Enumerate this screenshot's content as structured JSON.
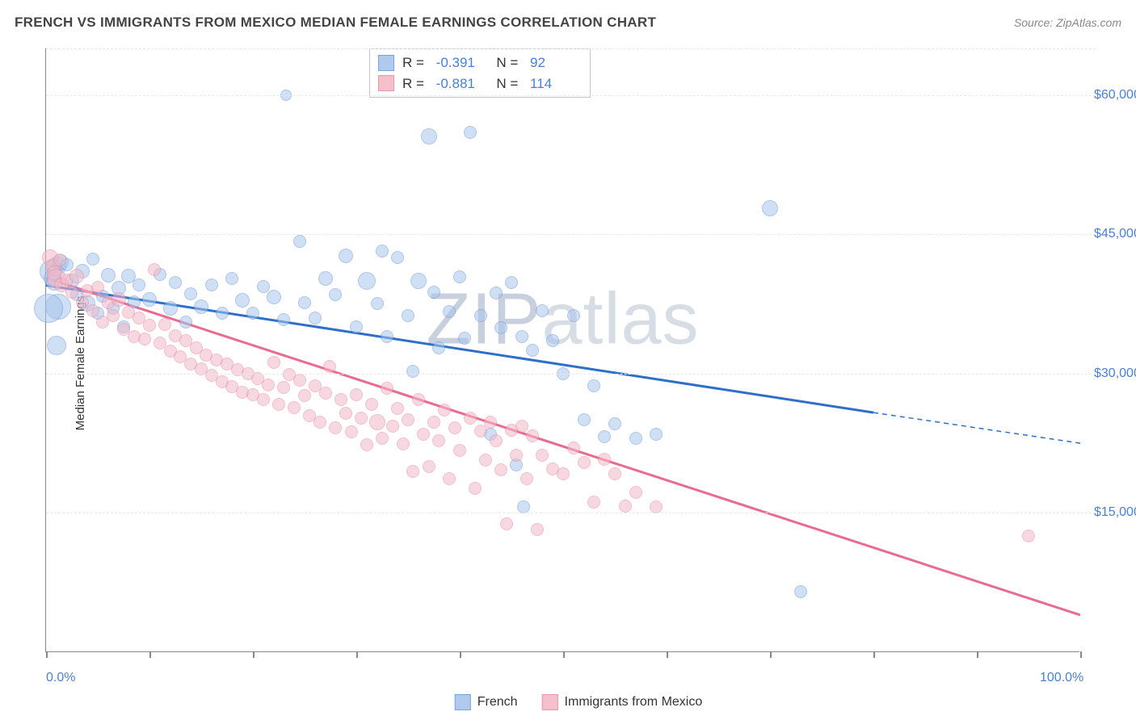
{
  "header": {
    "title": "FRENCH VS IMMIGRANTS FROM MEXICO MEDIAN FEMALE EARNINGS CORRELATION CHART",
    "source": "Source: ZipAtlas.com"
  },
  "chart": {
    "type": "scatter",
    "watermark": "ZIPatlas",
    "yaxis_label": "Median Female Earnings",
    "xlim": [
      0,
      100
    ],
    "ylim": [
      0,
      65000
    ],
    "x_ticks": [
      0,
      10,
      20,
      30,
      40,
      50,
      60,
      70,
      80,
      90,
      100
    ],
    "x_tick_labels": {
      "0": "0.0%",
      "100": "100.0%"
    },
    "y_ticks": [
      15000,
      30000,
      45000,
      60000
    ],
    "y_tick_labels": [
      "$15,000",
      "$30,000",
      "$45,000",
      "$60,000"
    ],
    "grid_color": "#e8e8e8",
    "axis_color": "#888888",
    "background_color": "#ffffff",
    "tick_label_color": "#4a7fd6",
    "label_fontsize": 15,
    "tick_fontsize": 16,
    "series": [
      {
        "name": "French",
        "fill": "#a8c5ec",
        "stroke": "#6c99d8",
        "fill_opacity": 0.55,
        "trend_color": "#2e6fc9",
        "R": "-0.391",
        "N": "92",
        "trend": {
          "x1": 0,
          "y1": 39500,
          "x2": 80,
          "y2": 25800,
          "x_dash_start": 80,
          "x2d": 100,
          "y2d": 22500
        },
        "points": [
          {
            "x": 0.5,
            "y": 41000,
            "r": 14
          },
          {
            "x": 0.6,
            "y": 40200,
            "r": 11
          },
          {
            "x": 0.8,
            "y": 39800,
            "r": 10
          },
          {
            "x": 1.0,
            "y": 41500,
            "r": 12
          },
          {
            "x": 1.2,
            "y": 37200,
            "r": 16
          },
          {
            "x": 1.4,
            "y": 42000,
            "r": 10
          },
          {
            "x": 1.0,
            "y": 33000,
            "r": 12
          },
          {
            "x": 0.2,
            "y": 37000,
            "r": 18
          },
          {
            "x": 2.0,
            "y": 41700,
            "r": 8
          },
          {
            "x": 2.5,
            "y": 40000,
            "r": 9
          },
          {
            "x": 3.0,
            "y": 38500,
            "r": 8
          },
          {
            "x": 3.5,
            "y": 41000,
            "r": 9
          },
          {
            "x": 4.0,
            "y": 37500,
            "r": 10
          },
          {
            "x": 4.5,
            "y": 42300,
            "r": 8
          },
          {
            "x": 5.0,
            "y": 36500,
            "r": 8
          },
          {
            "x": 5.5,
            "y": 38300,
            "r": 8
          },
          {
            "x": 6.0,
            "y": 40600,
            "r": 9
          },
          {
            "x": 6.5,
            "y": 37000,
            "r": 8
          },
          {
            "x": 7.0,
            "y": 39200,
            "r": 9
          },
          {
            "x": 7.5,
            "y": 35000,
            "r": 8
          },
          {
            "x": 8.0,
            "y": 40500,
            "r": 9
          },
          {
            "x": 8.5,
            "y": 37700,
            "r": 8
          },
          {
            "x": 9.0,
            "y": 39500,
            "r": 8
          },
          {
            "x": 10.0,
            "y": 38000,
            "r": 9
          },
          {
            "x": 11.0,
            "y": 40700,
            "r": 8
          },
          {
            "x": 12.0,
            "y": 37000,
            "r": 9
          },
          {
            "x": 12.5,
            "y": 39800,
            "r": 8
          },
          {
            "x": 13.5,
            "y": 35500,
            "r": 8
          },
          {
            "x": 14.0,
            "y": 38600,
            "r": 8
          },
          {
            "x": 15.0,
            "y": 37200,
            "r": 9
          },
          {
            "x": 16.0,
            "y": 39500,
            "r": 8
          },
          {
            "x": 17.0,
            "y": 36500,
            "r": 8
          },
          {
            "x": 18.0,
            "y": 40200,
            "r": 8
          },
          {
            "x": 19.0,
            "y": 37900,
            "r": 9
          },
          {
            "x": 20.0,
            "y": 36500,
            "r": 8
          },
          {
            "x": 21.0,
            "y": 39400,
            "r": 8
          },
          {
            "x": 22.0,
            "y": 38200,
            "r": 9
          },
          {
            "x": 23.0,
            "y": 35800,
            "r": 8
          },
          {
            "x": 23.2,
            "y": 60000,
            "r": 7
          },
          {
            "x": 24.5,
            "y": 44200,
            "r": 8
          },
          {
            "x": 25.0,
            "y": 37600,
            "r": 8
          },
          {
            "x": 26.0,
            "y": 36000,
            "r": 8
          },
          {
            "x": 27.0,
            "y": 40200,
            "r": 9
          },
          {
            "x": 28.0,
            "y": 38500,
            "r": 8
          },
          {
            "x": 29.0,
            "y": 42700,
            "r": 9
          },
          {
            "x": 30.0,
            "y": 35000,
            "r": 8
          },
          {
            "x": 31.0,
            "y": 40000,
            "r": 11
          },
          {
            "x": 32.0,
            "y": 37500,
            "r": 8
          },
          {
            "x": 32.5,
            "y": 43200,
            "r": 8
          },
          {
            "x": 33.0,
            "y": 34000,
            "r": 8
          },
          {
            "x": 34.0,
            "y": 42500,
            "r": 8
          },
          {
            "x": 35.0,
            "y": 36200,
            "r": 8
          },
          {
            "x": 35.5,
            "y": 30200,
            "r": 8
          },
          {
            "x": 36.0,
            "y": 40000,
            "r": 10
          },
          {
            "x": 37.0,
            "y": 55500,
            "r": 10
          },
          {
            "x": 37.5,
            "y": 38800,
            "r": 8
          },
          {
            "x": 38.0,
            "y": 32800,
            "r": 8
          },
          {
            "x": 39.0,
            "y": 36700,
            "r": 8
          },
          {
            "x": 40.0,
            "y": 40400,
            "r": 8
          },
          {
            "x": 40.5,
            "y": 33800,
            "r": 8
          },
          {
            "x": 41.0,
            "y": 56000,
            "r": 8
          },
          {
            "x": 42.0,
            "y": 36200,
            "r": 8
          },
          {
            "x": 43.0,
            "y": 23500,
            "r": 8
          },
          {
            "x": 43.5,
            "y": 38700,
            "r": 8
          },
          {
            "x": 44.0,
            "y": 34900,
            "r": 8
          },
          {
            "x": 45.0,
            "y": 39800,
            "r": 8
          },
          {
            "x": 45.5,
            "y": 20200,
            "r": 8
          },
          {
            "x": 46.0,
            "y": 34000,
            "r": 8
          },
          {
            "x": 46.2,
            "y": 15600,
            "r": 8
          },
          {
            "x": 47.0,
            "y": 32500,
            "r": 8
          },
          {
            "x": 48.0,
            "y": 36800,
            "r": 8
          },
          {
            "x": 49.0,
            "y": 33500,
            "r": 8
          },
          {
            "x": 50.0,
            "y": 30000,
            "r": 8
          },
          {
            "x": 51.0,
            "y": 36200,
            "r": 8
          },
          {
            "x": 52.0,
            "y": 25000,
            "r": 8
          },
          {
            "x": 53.0,
            "y": 28700,
            "r": 8
          },
          {
            "x": 54.0,
            "y": 23200,
            "r": 8
          },
          {
            "x": 55.0,
            "y": 24600,
            "r": 8
          },
          {
            "x": 57.0,
            "y": 23000,
            "r": 8
          },
          {
            "x": 59.0,
            "y": 23500,
            "r": 8
          },
          {
            "x": 70.0,
            "y": 47800,
            "r": 10
          },
          {
            "x": 73.0,
            "y": 6500,
            "r": 8
          }
        ]
      },
      {
        "name": "Immigrants from Mexico",
        "fill": "#f4b9c7",
        "stroke": "#e88aa3",
        "fill_opacity": 0.55,
        "trend_color": "#e76c8f",
        "R": "-0.881",
        "N": "114",
        "trend": {
          "x1": 0,
          "y1": 40300,
          "x2": 100,
          "y2": 4000
        },
        "points": [
          {
            "x": 0.4,
            "y": 42500,
            "r": 10
          },
          {
            "x": 0.6,
            "y": 41500,
            "r": 9
          },
          {
            "x": 0.8,
            "y": 40800,
            "r": 9
          },
          {
            "x": 1.0,
            "y": 40200,
            "r": 12
          },
          {
            "x": 1.3,
            "y": 42200,
            "r": 8
          },
          {
            "x": 1.5,
            "y": 39500,
            "r": 9
          },
          {
            "x": 2.0,
            "y": 40100,
            "r": 8
          },
          {
            "x": 2.5,
            "y": 38800,
            "r": 8
          },
          {
            "x": 3.0,
            "y": 40500,
            "r": 9
          },
          {
            "x": 3.5,
            "y": 37600,
            "r": 8
          },
          {
            "x": 4.0,
            "y": 38900,
            "r": 8
          },
          {
            "x": 4.5,
            "y": 36800,
            "r": 8
          },
          {
            "x": 5.0,
            "y": 39300,
            "r": 8
          },
          {
            "x": 5.5,
            "y": 35500,
            "r": 8
          },
          {
            "x": 6.0,
            "y": 37600,
            "r": 8
          },
          {
            "x": 6.5,
            "y": 36200,
            "r": 8
          },
          {
            "x": 7.0,
            "y": 38000,
            "r": 9
          },
          {
            "x": 7.5,
            "y": 34800,
            "r": 8
          },
          {
            "x": 8.0,
            "y": 36600,
            "r": 8
          },
          {
            "x": 8.5,
            "y": 34000,
            "r": 8
          },
          {
            "x": 9.0,
            "y": 36000,
            "r": 8
          },
          {
            "x": 9.5,
            "y": 33700,
            "r": 8
          },
          {
            "x": 10.0,
            "y": 35200,
            "r": 8
          },
          {
            "x": 10.5,
            "y": 41200,
            "r": 8
          },
          {
            "x": 11.0,
            "y": 33300,
            "r": 8
          },
          {
            "x": 11.5,
            "y": 35300,
            "r": 8
          },
          {
            "x": 12.0,
            "y": 32400,
            "r": 8
          },
          {
            "x": 12.5,
            "y": 34100,
            "r": 8
          },
          {
            "x": 13.0,
            "y": 31800,
            "r": 8
          },
          {
            "x": 13.5,
            "y": 33500,
            "r": 8
          },
          {
            "x": 14.0,
            "y": 31000,
            "r": 8
          },
          {
            "x": 14.5,
            "y": 32800,
            "r": 8
          },
          {
            "x": 15.0,
            "y": 30500,
            "r": 8
          },
          {
            "x": 15.5,
            "y": 32000,
            "r": 8
          },
          {
            "x": 16.0,
            "y": 29800,
            "r": 8
          },
          {
            "x": 16.5,
            "y": 31500,
            "r": 8
          },
          {
            "x": 17.0,
            "y": 29100,
            "r": 8
          },
          {
            "x": 17.5,
            "y": 31000,
            "r": 8
          },
          {
            "x": 18.0,
            "y": 28600,
            "r": 8
          },
          {
            "x": 18.5,
            "y": 30400,
            "r": 8
          },
          {
            "x": 19.0,
            "y": 28000,
            "r": 8
          },
          {
            "x": 19.5,
            "y": 30000,
            "r": 8
          },
          {
            "x": 20.0,
            "y": 27700,
            "r": 8
          },
          {
            "x": 20.5,
            "y": 29500,
            "r": 8
          },
          {
            "x": 21.0,
            "y": 27200,
            "r": 8
          },
          {
            "x": 21.5,
            "y": 28800,
            "r": 8
          },
          {
            "x": 22.0,
            "y": 31200,
            "r": 8
          },
          {
            "x": 22.5,
            "y": 26700,
            "r": 8
          },
          {
            "x": 23.0,
            "y": 28500,
            "r": 8
          },
          {
            "x": 23.5,
            "y": 29900,
            "r": 8
          },
          {
            "x": 24.0,
            "y": 26300,
            "r": 8
          },
          {
            "x": 24.5,
            "y": 29300,
            "r": 8
          },
          {
            "x": 25.0,
            "y": 27600,
            "r": 8
          },
          {
            "x": 25.5,
            "y": 25500,
            "r": 8
          },
          {
            "x": 26.0,
            "y": 28700,
            "r": 8
          },
          {
            "x": 26.5,
            "y": 24800,
            "r": 8
          },
          {
            "x": 27.0,
            "y": 27900,
            "r": 8
          },
          {
            "x": 27.4,
            "y": 30800,
            "r": 8
          },
          {
            "x": 28.0,
            "y": 24200,
            "r": 8
          },
          {
            "x": 28.5,
            "y": 27200,
            "r": 8
          },
          {
            "x": 29.0,
            "y": 25700,
            "r": 8
          },
          {
            "x": 29.5,
            "y": 23700,
            "r": 8
          },
          {
            "x": 30.0,
            "y": 27700,
            "r": 8
          },
          {
            "x": 30.5,
            "y": 25200,
            "r": 8
          },
          {
            "x": 31.0,
            "y": 22300,
            "r": 8
          },
          {
            "x": 31.5,
            "y": 26700,
            "r": 8
          },
          {
            "x": 32.0,
            "y": 24800,
            "r": 10
          },
          {
            "x": 32.5,
            "y": 23000,
            "r": 8
          },
          {
            "x": 33.0,
            "y": 28400,
            "r": 8
          },
          {
            "x": 33.5,
            "y": 24300,
            "r": 8
          },
          {
            "x": 34.0,
            "y": 26200,
            "r": 8
          },
          {
            "x": 34.5,
            "y": 22400,
            "r": 8
          },
          {
            "x": 35.0,
            "y": 25000,
            "r": 8
          },
          {
            "x": 35.5,
            "y": 19500,
            "r": 8
          },
          {
            "x": 36.0,
            "y": 27200,
            "r": 8
          },
          {
            "x": 36.5,
            "y": 23500,
            "r": 8
          },
          {
            "x": 37.0,
            "y": 20000,
            "r": 8
          },
          {
            "x": 37.5,
            "y": 24800,
            "r": 8
          },
          {
            "x": 38.0,
            "y": 22800,
            "r": 8
          },
          {
            "x": 38.5,
            "y": 26100,
            "r": 8
          },
          {
            "x": 39.0,
            "y": 18700,
            "r": 8
          },
          {
            "x": 39.5,
            "y": 24200,
            "r": 8
          },
          {
            "x": 40.0,
            "y": 21700,
            "r": 8
          },
          {
            "x": 41.0,
            "y": 25200,
            "r": 8
          },
          {
            "x": 41.5,
            "y": 17600,
            "r": 8
          },
          {
            "x": 42.0,
            "y": 23800,
            "r": 8
          },
          {
            "x": 42.5,
            "y": 20700,
            "r": 8
          },
          {
            "x": 43.0,
            "y": 24800,
            "r": 8
          },
          {
            "x": 43.5,
            "y": 22800,
            "r": 8
          },
          {
            "x": 44.0,
            "y": 19600,
            "r": 8
          },
          {
            "x": 44.5,
            "y": 13800,
            "r": 8
          },
          {
            "x": 45.0,
            "y": 23900,
            "r": 8
          },
          {
            "x": 45.5,
            "y": 21200,
            "r": 8
          },
          {
            "x": 46.0,
            "y": 24300,
            "r": 8
          },
          {
            "x": 46.5,
            "y": 18700,
            "r": 8
          },
          {
            "x": 47.0,
            "y": 23300,
            "r": 8
          },
          {
            "x": 47.5,
            "y": 13200,
            "r": 8
          },
          {
            "x": 48.0,
            "y": 21200,
            "r": 8
          },
          {
            "x": 49.0,
            "y": 19700,
            "r": 8
          },
          {
            "x": 50.0,
            "y": 19200,
            "r": 8
          },
          {
            "x": 51.0,
            "y": 22000,
            "r": 8
          },
          {
            "x": 52.0,
            "y": 20400,
            "r": 8
          },
          {
            "x": 53.0,
            "y": 16200,
            "r": 8
          },
          {
            "x": 54.0,
            "y": 20800,
            "r": 8
          },
          {
            "x": 55.0,
            "y": 19200,
            "r": 8
          },
          {
            "x": 56.0,
            "y": 15700,
            "r": 8
          },
          {
            "x": 57.0,
            "y": 17200,
            "r": 8
          },
          {
            "x": 59.0,
            "y": 15600,
            "r": 8
          },
          {
            "x": 95.0,
            "y": 12500,
            "r": 8
          }
        ]
      }
    ],
    "legend_labels": [
      "French",
      "Immigrants from Mexico"
    ]
  }
}
